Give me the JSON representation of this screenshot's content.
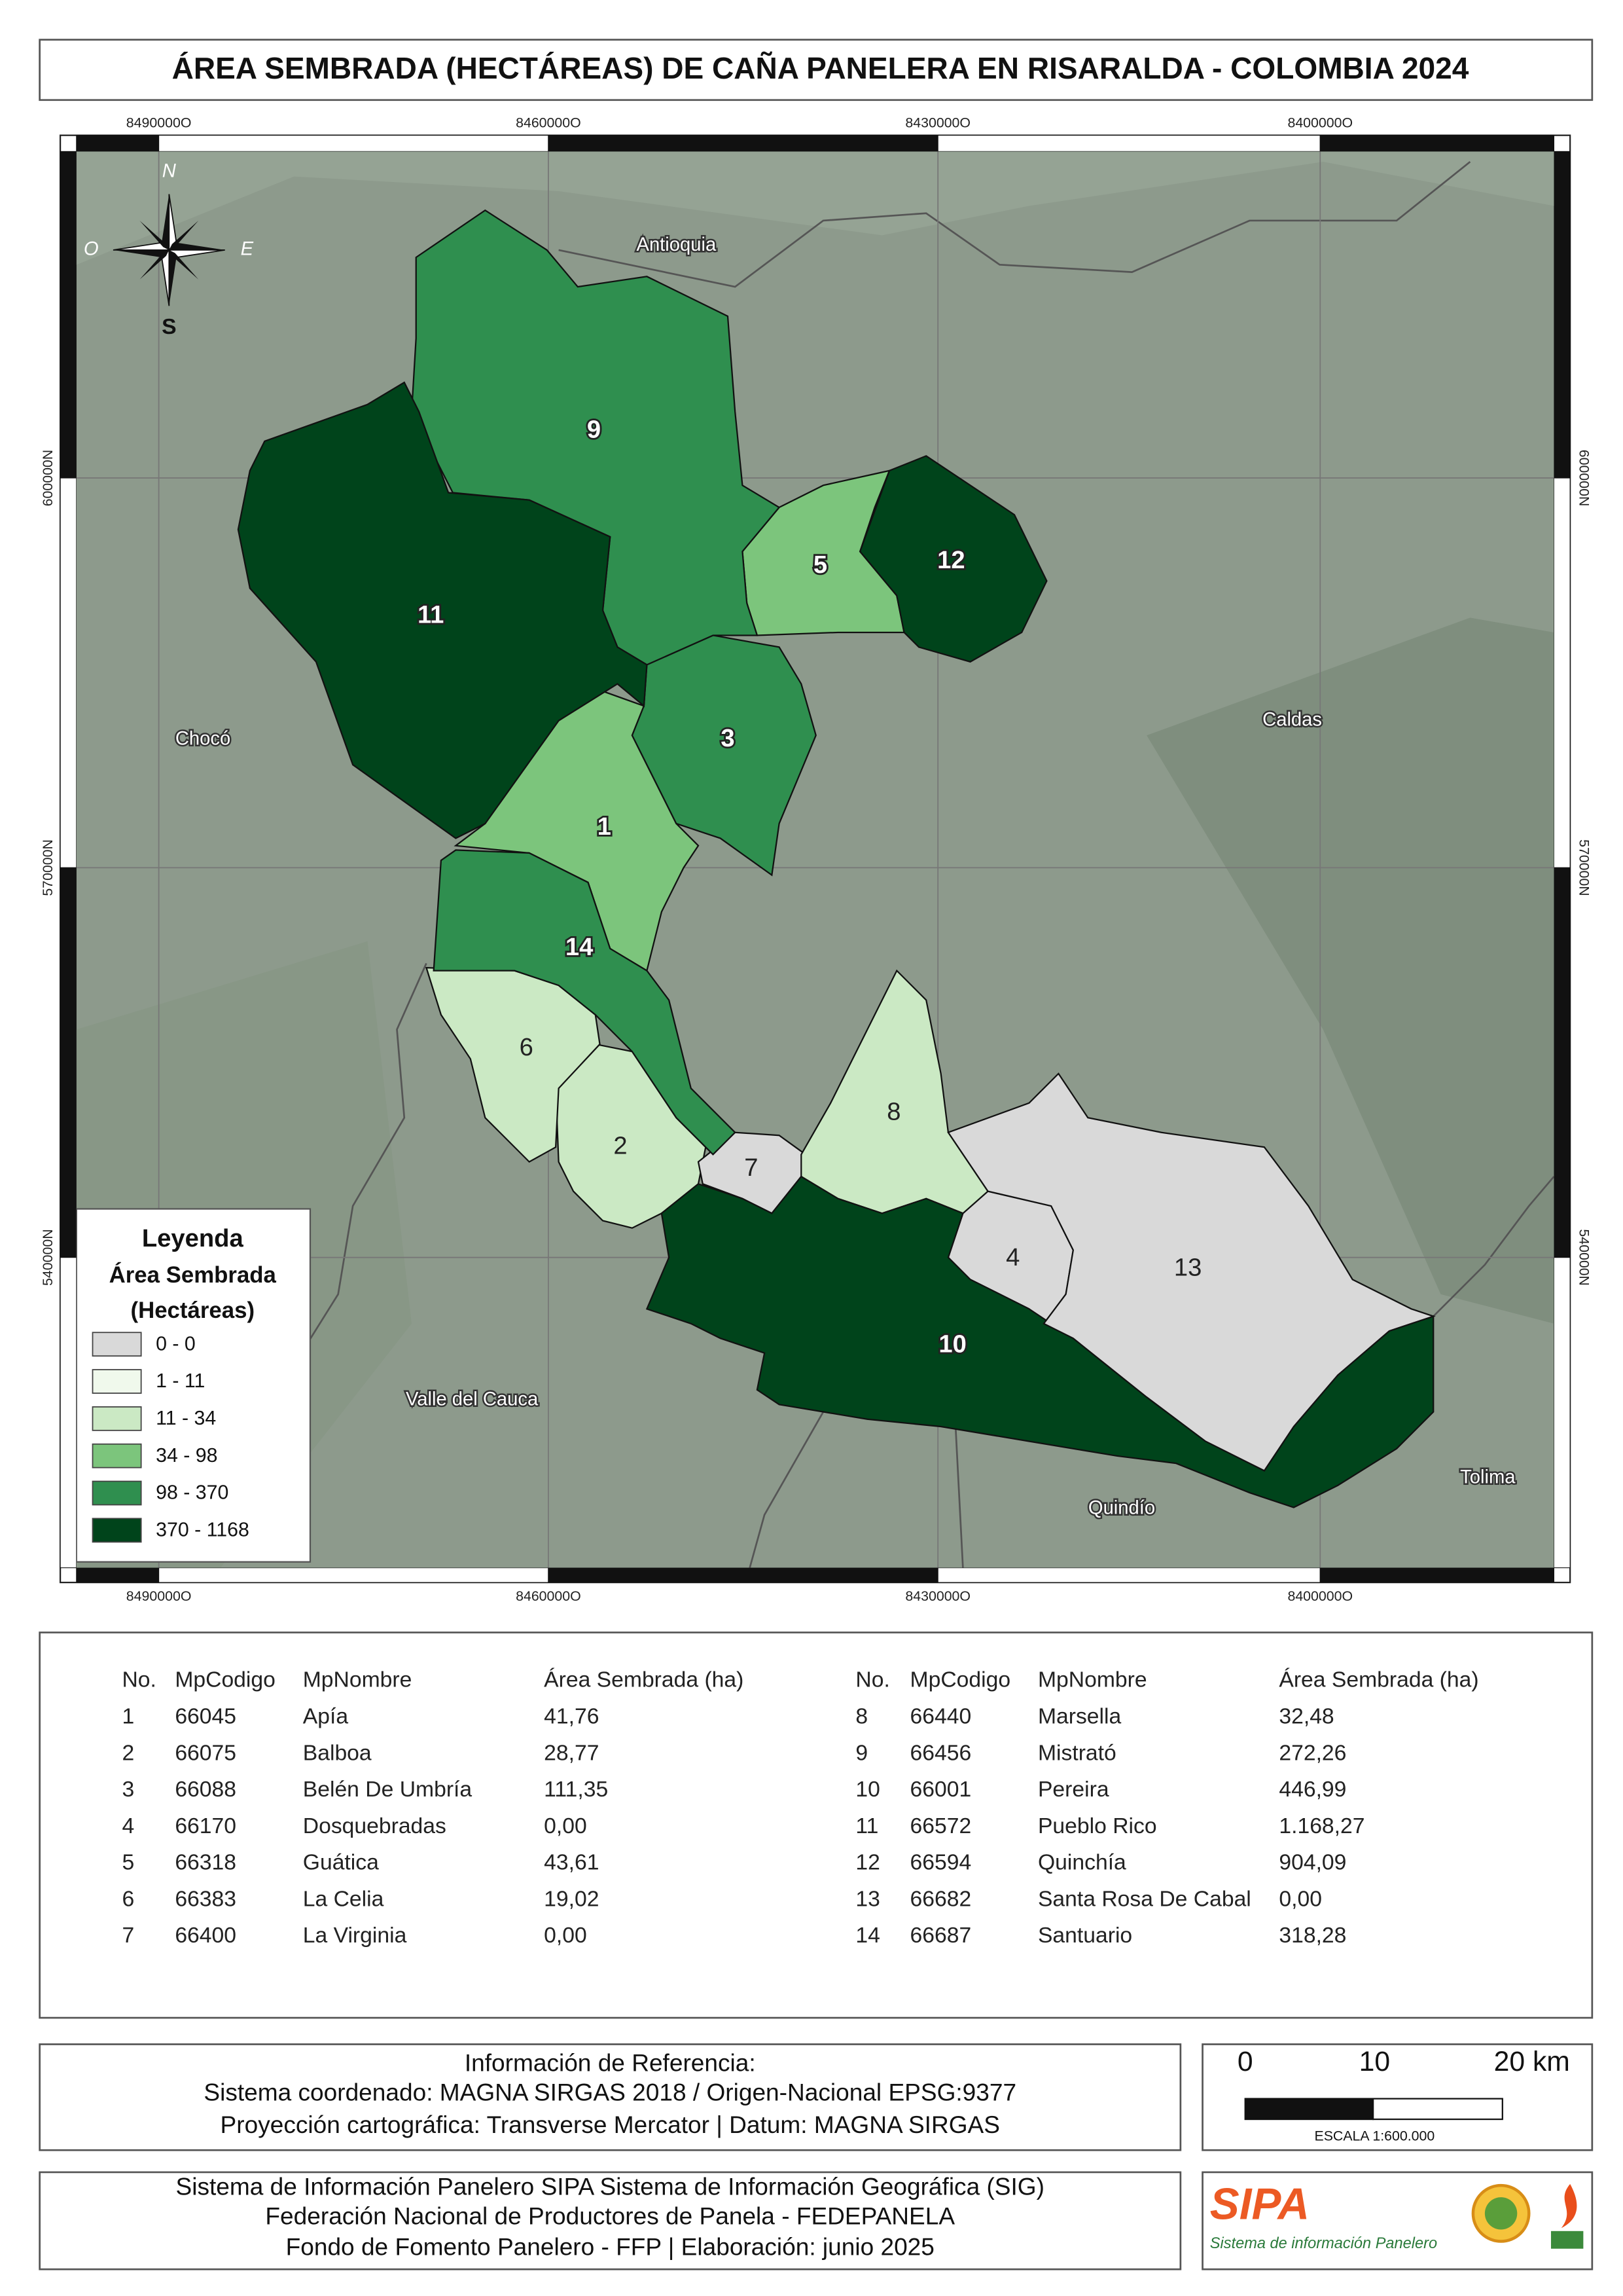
{
  "title": "ÁREA SEMBRADA (HECTÁREAS) DE CAÑA PANELERA EN RISARALDA - COLOMBIA 2024",
  "map": {
    "x_coords": [
      "8490000O",
      "8460000O",
      "8430000O",
      "8400000O"
    ],
    "y_coords": [
      "600000N",
      "570000N",
      "540000N"
    ],
    "compass": {
      "n": "N",
      "o": "O",
      "e": "E",
      "s": "S"
    },
    "regions": [
      "Antioquia",
      "Chocó",
      "Caldas",
      "Valle del Cauca",
      "Quindío",
      "Tolima"
    ],
    "colors": [
      "#7cc57c",
      "#cbe9c4",
      "#2f8f4f",
      "#d9d9d9",
      "#7cc57c",
      "#cbe9c4",
      "#d9d9d9",
      "#cbe9c4",
      "#2f8f4f",
      "#00441b",
      "#00441b",
      "#00441b",
      "#d9d9d9",
      "#2f8f4f"
    ]
  },
  "legend": {
    "title": "Leyenda",
    "subtitle": "Área Sembrada",
    "unit": "(Hectáreas)",
    "classes": [
      {
        "label": "0 - 0",
        "color": "#d9d9d9"
      },
      {
        "label": "1 - 11",
        "color": "#f0f9ec"
      },
      {
        "label": "11 - 34",
        "color": "#cbe9c4"
      },
      {
        "label": "34 - 98",
        "color": "#7cc57c"
      },
      {
        "label": "98 - 370",
        "color": "#2f8f4f"
      },
      {
        "label": "370 - 1168",
        "color": "#00441b"
      }
    ]
  },
  "table": {
    "headers": [
      "No.",
      "MpCodigo",
      "MpNombre",
      "Área Sembrada (ha)"
    ],
    "rows": [
      [
        "1",
        "66045",
        "Apía",
        "41,76"
      ],
      [
        "2",
        "66075",
        "Balboa",
        "28,77"
      ],
      [
        "3",
        "66088",
        "Belén De Umbría",
        "111,35"
      ],
      [
        "4",
        "66170",
        "Dosquebradas",
        "0,00"
      ],
      [
        "5",
        "66318",
        "Guática",
        "43,61"
      ],
      [
        "6",
        "66383",
        "La Celia",
        "19,02"
      ],
      [
        "7",
        "66400",
        "La Virginia",
        "0,00"
      ],
      [
        "8",
        "66440",
        "Marsella",
        "32,48"
      ],
      [
        "9",
        "66456",
        "Mistrató",
        "272,26"
      ],
      [
        "10",
        "66001",
        "Pereira",
        "446,99"
      ],
      [
        "11",
        "66572",
        "Pueblo Rico",
        "1.168,27"
      ],
      [
        "12",
        "66594",
        "Quinchía",
        "904,09"
      ],
      [
        "13",
        "66682",
        "Santa Rosa De Cabal",
        "0,00"
      ],
      [
        "14",
        "66687",
        "Santuario",
        "318,28"
      ]
    ]
  },
  "reference": [
    "Información de Referencia:",
    "Sistema coordenado: MAGNA SIRGAS 2018 / Origen-Nacional EPSG:9377",
    "Proyección cartográfica: Transverse Mercator | Datum: MAGNA SIRGAS"
  ],
  "scale": {
    "labels": [
      "0",
      "10",
      "20 km"
    ],
    "text": "ESCALA 1:600.000"
  },
  "footer": [
    "Sistema de Información Panelero SIPA  Sistema de Información Geográfica (SIG)",
    "Federación Nacional de Productores de Panela - FEDEPANELA",
    "Fondo de Fomento Panelero - FFP |  Elaboración: junio 2025"
  ],
  "logo": {
    "name": "SIPA",
    "tagline": "Sistema de información Panelero"
  }
}
